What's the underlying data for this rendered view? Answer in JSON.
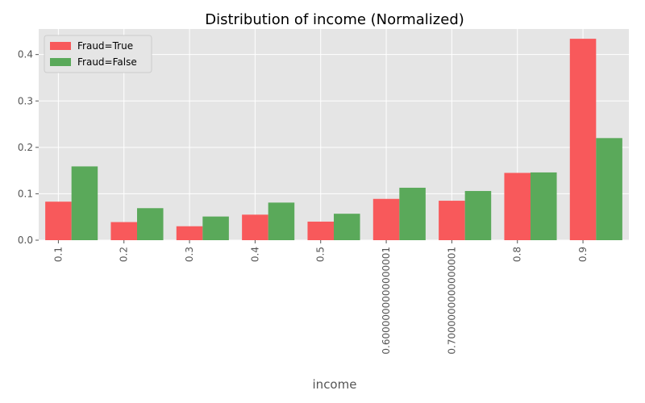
{
  "chart_data": {
    "type": "bar",
    "title": "Distribution of income (Normalized)",
    "xlabel": "income",
    "ylabel": "",
    "categories": [
      "0.1",
      "0.2",
      "0.3",
      "0.4",
      "0.5",
      "0.6000000000000001",
      "0.7000000000000001",
      "0.8",
      "0.9"
    ],
    "series": [
      {
        "name": "Fraud=True",
        "color": "#f8595b",
        "values": [
          0.083,
          0.039,
          0.03,
          0.055,
          0.04,
          0.089,
          0.085,
          0.145,
          0.434
        ]
      },
      {
        "name": "Fraud=False",
        "color": "#5aa95a",
        "values": [
          0.159,
          0.069,
          0.051,
          0.081,
          0.057,
          0.113,
          0.106,
          0.146,
          0.22
        ]
      }
    ],
    "yticks": [
      "0.0",
      "0.1",
      "0.2",
      "0.3",
      "0.4"
    ],
    "ylim": [
      0,
      0.455
    ],
    "grid": true,
    "legend_position": "top-left"
  }
}
